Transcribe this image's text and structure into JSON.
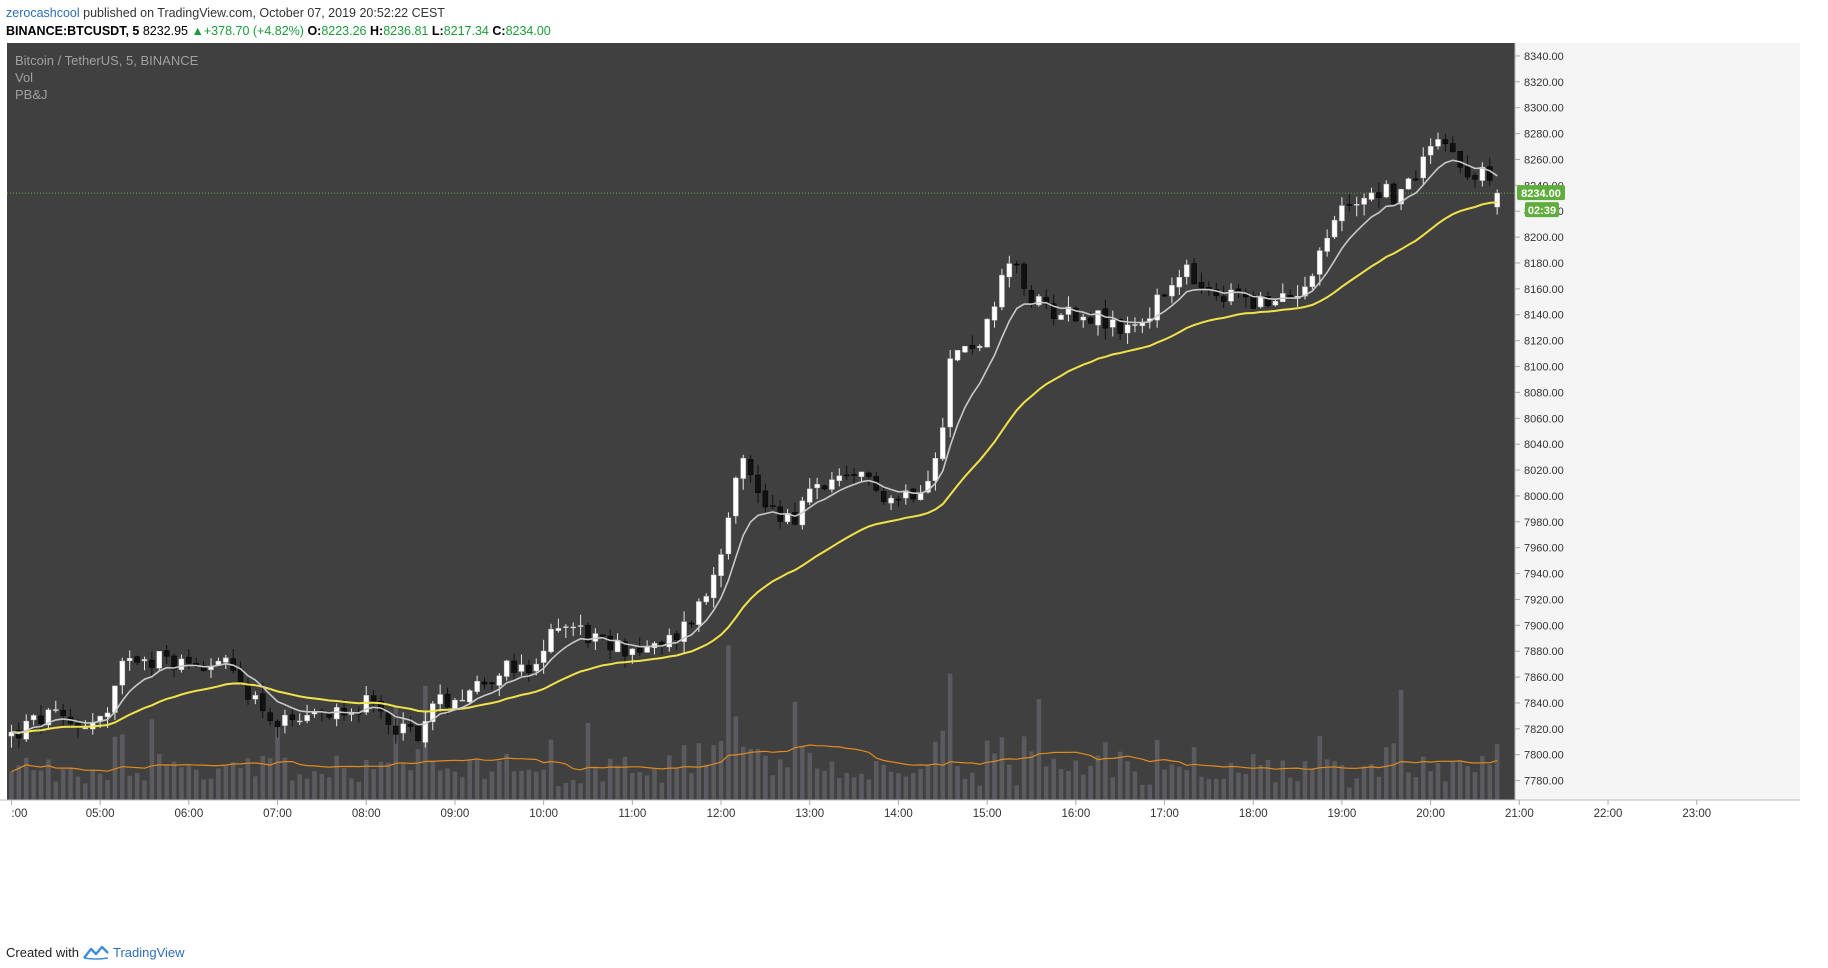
{
  "header": {
    "user": "zerocashcool",
    "published_text": " published on TradingView.com, October 07, 2019 20:52:22 CEST"
  },
  "quote": {
    "symbol": "BINANCE:BTCUSDT, 5",
    "last": "8232.95",
    "change": "+378.70 (+4.82%)",
    "o_label": "O:",
    "o": "8223.26",
    "h_label": "H:",
    "h": "8236.81",
    "l_label": "L:",
    "l": "8217.34",
    "c_label": "C:",
    "c": "8234.00"
  },
  "legend": {
    "title": "Bitcoin / TetherUS, 5, BINANCE",
    "vol": "Vol",
    "indicator": "PB&J"
  },
  "price_tag": {
    "value": "8234.00",
    "countdown": "02:39",
    "color": "#5fad3d"
  },
  "footer": {
    "created_with": "Created with",
    "brand": "TradingView"
  },
  "colors": {
    "background": "#404040",
    "candle_up": "#ffffff",
    "candle_down": "#111111",
    "ema_fast": "#c8c8c8",
    "ema_slow": "#f2e24a",
    "volume": "#5a5a5f",
    "volume_ma": "#e08a1e",
    "last_price_line": "#5fad3d"
  },
  "chart_data": {
    "type": "candlestick",
    "title": "Bitcoin / TetherUS, 5, BINANCE",
    "ylim": [
      7765,
      8350
    ],
    "y_ticks": [
      "8340.00",
      "8320.00",
      "8300.00",
      "8280.00",
      "8260.00",
      "8240.00",
      "8220.00",
      "8200.00",
      "8180.00",
      "8160.00",
      "8140.00",
      "8120.00",
      "8100.00",
      "8080.00",
      "8060.00",
      "8040.00",
      "8020.00",
      "8000.00",
      "7980.00",
      "7960.00",
      "7940.00",
      "7920.00",
      "7900.00",
      "7880.00",
      "7860.00",
      "7840.00",
      "7820.00",
      "7800.00",
      "7780.00"
    ],
    "x_ticks": [
      ":00",
      "05:00",
      "06:00",
      "07:00",
      "08:00",
      "09:00",
      "10:00",
      "11:00",
      "12:00",
      "13:00",
      "14:00",
      "15:00",
      "16:00",
      "17:00",
      "18:00",
      "19:00",
      "20:00",
      "21:00",
      "22:00",
      "23:00"
    ],
    "x_tick_hours": [
      4,
      5,
      6,
      7,
      8,
      9,
      10,
      11,
      12,
      13,
      14,
      15,
      16,
      17,
      18,
      19,
      20,
      21,
      22,
      23
    ],
    "x_range_hours": [
      3.95,
      23.85
    ],
    "candle_interval_minutes": 5,
    "first_candle_hour": 4.0,
    "last_price": 8234.0,
    "volume_max": 150,
    "anchors": [
      [
        4.0,
        7815
      ],
      [
        4.4,
        7830
      ],
      [
        4.7,
        7822
      ],
      [
        5.1,
        7830
      ],
      [
        5.3,
        7880
      ],
      [
        5.6,
        7875
      ],
      [
        6.0,
        7870
      ],
      [
        6.3,
        7875
      ],
      [
        6.7,
        7848
      ],
      [
        7.0,
        7823
      ],
      [
        7.3,
        7822
      ],
      [
        7.7,
        7838
      ],
      [
        8.0,
        7838
      ],
      [
        8.3,
        7825
      ],
      [
        8.55,
        7815
      ],
      [
        8.8,
        7840
      ],
      [
        9.2,
        7852
      ],
      [
        9.5,
        7866
      ],
      [
        9.9,
        7862
      ],
      [
        10.15,
        7905
      ],
      [
        10.4,
        7898
      ],
      [
        10.7,
        7883
      ],
      [
        11.0,
        7883
      ],
      [
        11.3,
        7880
      ],
      [
        11.6,
        7900
      ],
      [
        11.85,
        7925
      ],
      [
        12.05,
        7975
      ],
      [
        12.2,
        8035
      ],
      [
        12.35,
        8010
      ],
      [
        12.6,
        7988
      ],
      [
        12.85,
        7985
      ],
      [
        13.1,
        8010
      ],
      [
        13.4,
        8008
      ],
      [
        13.7,
        8015
      ],
      [
        13.9,
        7997
      ],
      [
        14.2,
        8006
      ],
      [
        14.35,
        8018
      ],
      [
        14.5,
        8060
      ],
      [
        14.6,
        8112
      ],
      [
        14.8,
        8112
      ],
      [
        15.0,
        8130
      ],
      [
        15.25,
        8180
      ],
      [
        15.55,
        8148
      ],
      [
        15.9,
        8142
      ],
      [
        16.2,
        8140
      ],
      [
        16.45,
        8128
      ],
      [
        16.75,
        8135
      ],
      [
        17.0,
        8155
      ],
      [
        17.25,
        8172
      ],
      [
        17.55,
        8150
      ],
      [
        17.9,
        8158
      ],
      [
        18.15,
        8145
      ],
      [
        18.45,
        8155
      ],
      [
        18.7,
        8180
      ],
      [
        18.95,
        8218
      ],
      [
        19.2,
        8232
      ],
      [
        19.45,
        8238
      ],
      [
        19.65,
        8230
      ],
      [
        19.9,
        8258
      ],
      [
        20.1,
        8285
      ],
      [
        20.3,
        8258
      ],
      [
        20.55,
        8250
      ],
      [
        20.75,
        8232
      ]
    ],
    "series": [
      {
        "name": "PB&J fast EMA",
        "role": "ema_fast",
        "period": 8
      },
      {
        "name": "PB&J slow EMA",
        "role": "ema_slow",
        "period": 30
      },
      {
        "name": "Vol",
        "role": "volume"
      },
      {
        "name": "Vol MA",
        "role": "volume_ma",
        "period": 20
      }
    ]
  }
}
